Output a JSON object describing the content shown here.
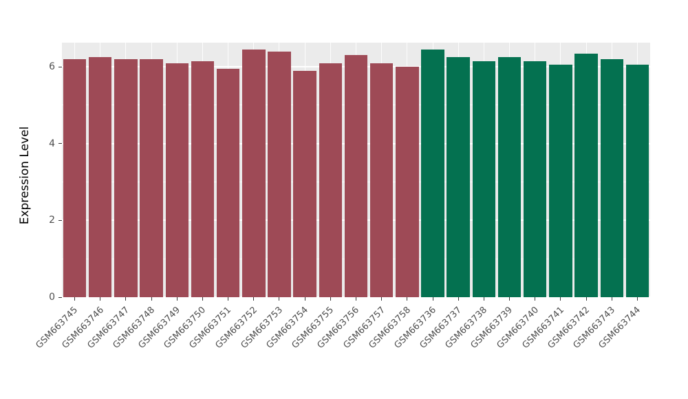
{
  "chart_data": {
    "type": "bar",
    "title": "",
    "xlabel": "",
    "ylabel": "Expression Level",
    "ylim": [
      0,
      6.63
    ],
    "yticks": [
      0,
      2,
      4,
      6
    ],
    "yticks_minor": [
      1,
      3,
      5
    ],
    "grid": true,
    "legend": "none",
    "panel_bg": "#EBEBEB",
    "grid_color": "#FFFFFF",
    "tick_label_color": "#4D4D4D",
    "axis_title_color": "#000000",
    "categories": [
      "GSM663745",
      "GSM663746",
      "GSM663747",
      "GSM663748",
      "GSM663749",
      "GSM663750",
      "GSM663751",
      "GSM663752",
      "GSM663753",
      "GSM663754",
      "GSM663755",
      "GSM663756",
      "GSM663757",
      "GSM663758",
      "GSM663736",
      "GSM663737",
      "GSM663738",
      "GSM663739",
      "GSM663740",
      "GSM663741",
      "GSM663742",
      "GSM663743",
      "GSM663744"
    ],
    "values": [
      6.2,
      6.25,
      6.2,
      6.2,
      6.1,
      6.15,
      5.95,
      6.45,
      6.4,
      5.9,
      6.1,
      6.3,
      6.1,
      6.0,
      6.45,
      6.25,
      6.15,
      6.25,
      6.15,
      6.05,
      6.35,
      6.2,
      6.05
    ],
    "groups": [
      "group1",
      "group1",
      "group1",
      "group1",
      "group1",
      "group1",
      "group1",
      "group1",
      "group1",
      "group1",
      "group1",
      "group1",
      "group1",
      "group1",
      "group2",
      "group2",
      "group2",
      "group2",
      "group2",
      "group2",
      "group2",
      "group2",
      "group2"
    ],
    "group_colors": {
      "group1": "#9E4A56",
      "group2": "#047150"
    }
  }
}
